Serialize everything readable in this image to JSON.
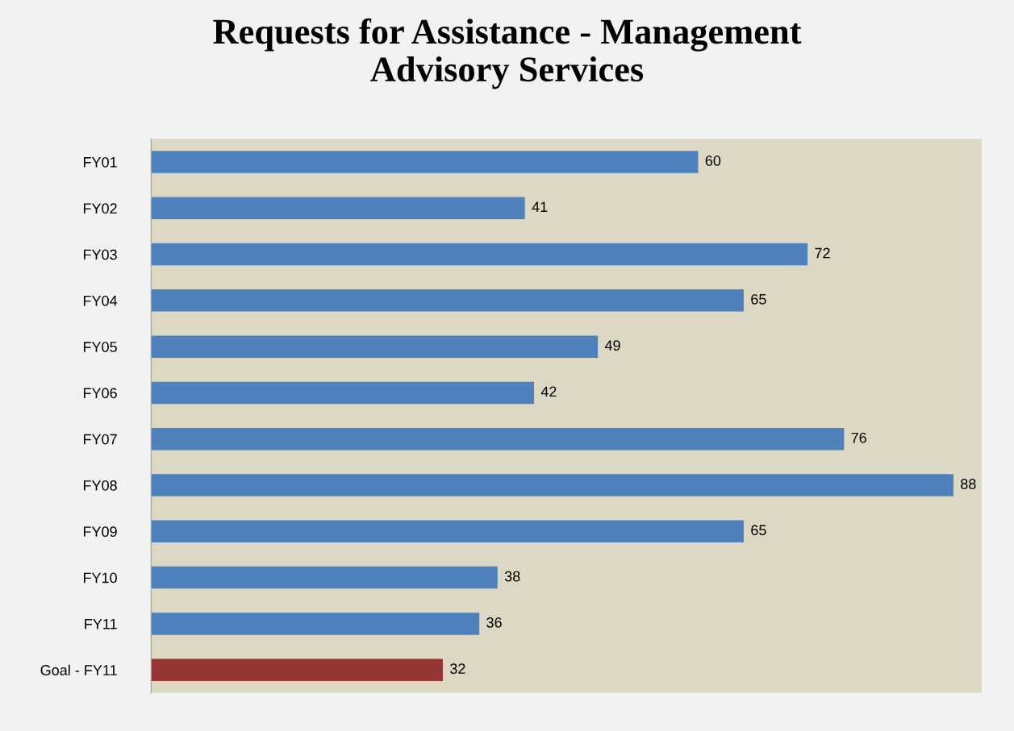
{
  "chart_data": {
    "type": "bar",
    "orientation": "horizontal",
    "title": "Requests for Assistance - Management\nAdvisory Services",
    "categories": [
      "FY01",
      "FY02",
      "FY03",
      "FY04",
      "FY05",
      "FY06",
      "FY07",
      "FY08",
      "FY09",
      "FY10",
      "FY11",
      "Goal - FY11"
    ],
    "values": [
      60,
      41,
      72,
      65,
      49,
      42,
      76,
      88,
      65,
      38,
      36,
      32
    ],
    "colors": [
      "#4f81bd",
      "#4f81bd",
      "#4f81bd",
      "#4f81bd",
      "#4f81bd",
      "#4f81bd",
      "#4f81bd",
      "#4f81bd",
      "#4f81bd",
      "#4f81bd",
      "#4f81bd",
      "#953735"
    ],
    "data_labels": true,
    "grid": false,
    "legend": false
  }
}
